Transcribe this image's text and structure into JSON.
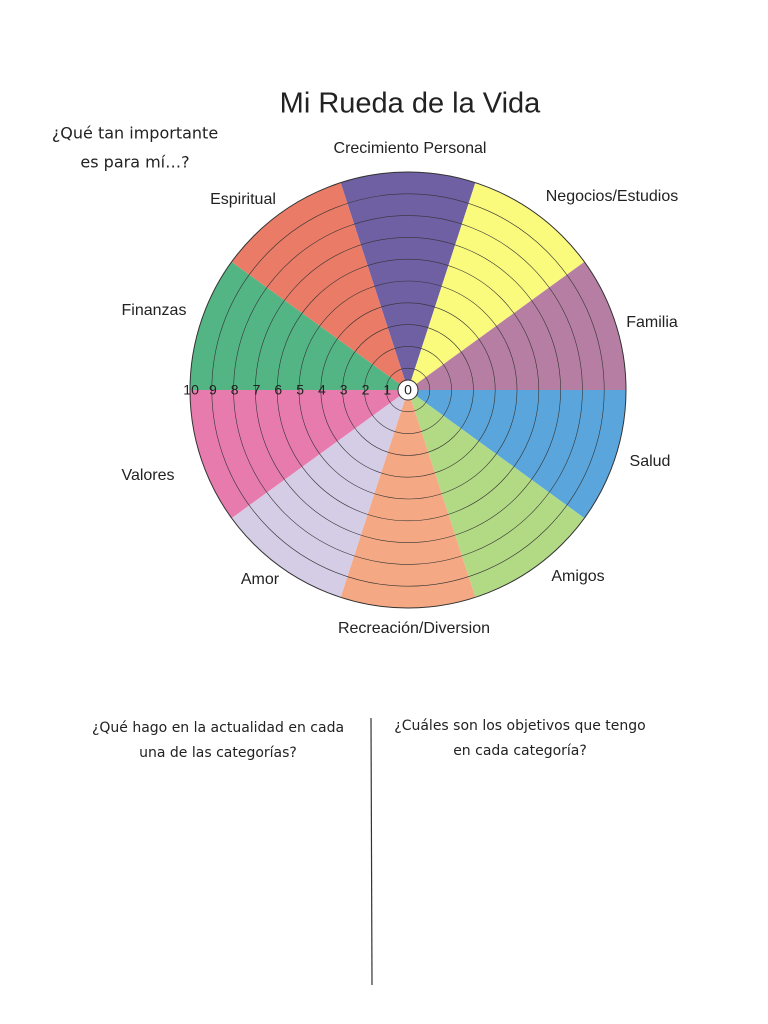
{
  "header": {
    "title": "Mi Rueda de la Vida"
  },
  "side_question": [
    "¿Qué tan importante",
    "es para mí…?"
  ],
  "wheel": {
    "segments": [
      {
        "label": "Crecimiento Personal",
        "color": "#6f5fa3"
      },
      {
        "label": "Negocios/Estudios",
        "color": "#fafa7c"
      },
      {
        "label": "Familia",
        "color": "#b67ea3"
      },
      {
        "label": "Salud",
        "color": "#5aa6dc"
      },
      {
        "label": "Amigos",
        "color": "#b2da84"
      },
      {
        "label": "Recreación/Diversion",
        "color": "#f4a883"
      },
      {
        "label": "Amor",
        "color": "#d5cde6"
      },
      {
        "label": "Valores",
        "color": "#e87bae"
      },
      {
        "label": "Finanzas",
        "color": "#53b584"
      },
      {
        "label": "Espiritual",
        "color": "#ea7b66"
      }
    ],
    "scale": [
      0,
      1,
      2,
      3,
      4,
      5,
      6,
      7,
      8,
      9,
      10
    ]
  },
  "questions": {
    "current": [
      "¿Qué hago en la actualidad en cada",
      "una de las categorías?"
    ],
    "goals": [
      "¿Cuáles son los objetivos que tengo",
      "en cada categoría?"
    ]
  }
}
